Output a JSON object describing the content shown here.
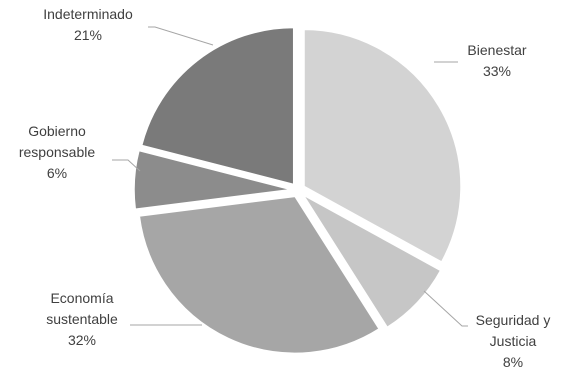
{
  "chart_data": {
    "type": "pie",
    "exploded": true,
    "slices": [
      {
        "label_lines": [
          "Bienestar"
        ],
        "value": 33,
        "value_label": "33%",
        "color": "#d3d3d3"
      },
      {
        "label_lines": [
          "Seguridad y",
          "Justicia"
        ],
        "value": 8,
        "value_label": "8%",
        "color": "#c6c6c6"
      },
      {
        "label_lines": [
          "Economía",
          "sustentable"
        ],
        "value": 32,
        "value_label": "32%",
        "color": "#a6a6a6"
      },
      {
        "label_lines": [
          "Gobierno",
          "responsable"
        ],
        "value": 6,
        "value_label": "6%",
        "color": "#8c8c8c"
      },
      {
        "label_lines": [
          "Indeterminado"
        ],
        "value": 21,
        "value_label": "21%",
        "color": "#7a7a7a"
      }
    ],
    "leader_line_color": "#a6a6a6",
    "label_color": "#404040"
  }
}
